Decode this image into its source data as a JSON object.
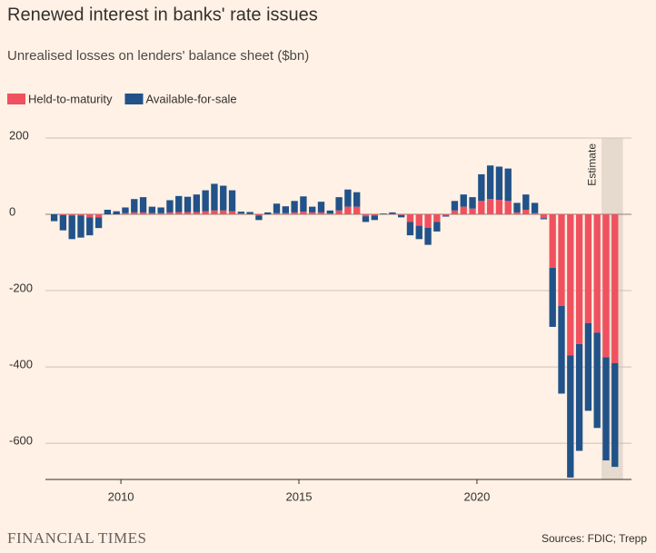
{
  "chart_data": {
    "type": "stacked_bar",
    "title": "Renewed interest in banks' rate issues",
    "subtitle": "Unrealised losses on lenders' balance sheet ($bn)",
    "source": "Sources: FDIC; Trepp",
    "brand": "FINANCIAL TIMES",
    "annotation": "Estimate",
    "estimate_range": [
      2023.5,
      2024.1
    ],
    "x": [
      2008.125,
      2008.375,
      2008.625,
      2008.875,
      2009.125,
      2009.375,
      2009.625,
      2009.875,
      2010.125,
      2010.375,
      2010.625,
      2010.875,
      2011.125,
      2011.375,
      2011.625,
      2011.875,
      2012.125,
      2012.375,
      2012.625,
      2012.875,
      2013.125,
      2013.375,
      2013.625,
      2013.875,
      2014.125,
      2014.375,
      2014.625,
      2014.875,
      2015.125,
      2015.375,
      2015.625,
      2015.875,
      2016.125,
      2016.375,
      2016.625,
      2016.875,
      2017.125,
      2017.375,
      2017.625,
      2017.875,
      2018.125,
      2018.375,
      2018.625,
      2018.875,
      2019.125,
      2019.375,
      2019.625,
      2019.875,
      2020.125,
      2020.375,
      2020.625,
      2020.875,
      2021.125,
      2021.375,
      2021.625,
      2021.875,
      2022.125,
      2022.375,
      2022.625,
      2022.875,
      2023.125,
      2023.375,
      2023.625,
      2023.875
    ],
    "series": [
      {
        "name": "Held-to-maturity",
        "color": "#f0515f",
        "values": [
          0,
          -2,
          -3,
          -3,
          -8,
          -8,
          0,
          0,
          3,
          5,
          5,
          3,
          3,
          5,
          6,
          6,
          6,
          8,
          10,
          10,
          8,
          2,
          1,
          -3,
          0,
          3,
          3,
          5,
          7,
          5,
          5,
          2,
          10,
          20,
          20,
          -5,
          -3,
          0,
          1,
          -2,
          -20,
          -30,
          -35,
          -20,
          -3,
          10,
          20,
          15,
          35,
          40,
          38,
          35,
          5,
          12,
          3,
          -10,
          -140,
          -240,
          -370,
          -340,
          -285,
          -310,
          -375,
          -390
        ]
      },
      {
        "name": "Available-for-sale",
        "color": "#215289",
        "values": [
          -18,
          -40,
          -62,
          -58,
          -47,
          -28,
          12,
          8,
          15,
          35,
          40,
          17,
          15,
          32,
          42,
          40,
          46,
          55,
          70,
          65,
          55,
          5,
          5,
          -12,
          5,
          25,
          18,
          30,
          40,
          15,
          28,
          8,
          35,
          45,
          38,
          -15,
          -12,
          2,
          4,
          -6,
          -35,
          -35,
          -45,
          -25,
          -3,
          25,
          32,
          30,
          70,
          88,
          87,
          85,
          25,
          40,
          27,
          -3,
          -155,
          -230,
          -320,
          -280,
          -230,
          -250,
          -270,
          -272
        ]
      }
    ],
    "xlim": [
      2007.88,
      2024.34
    ],
    "xticks": [
      2010,
      2015,
      2020
    ],
    "ylim": [
      -695,
      200
    ],
    "yticks": [
      200,
      0,
      -200,
      -400,
      -600
    ],
    "grid": true
  }
}
